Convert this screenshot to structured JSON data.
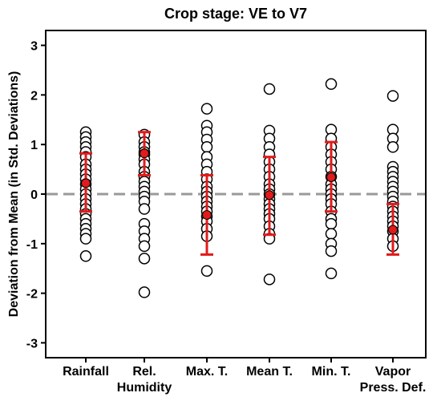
{
  "chart_data": {
    "type": "scatter",
    "title": "Crop stage: VE to V7",
    "ylabel": "Deviation from Mean (in Std. Deviations)",
    "xlabel": "",
    "ylim": [
      -3.3,
      3.3
    ],
    "yticks": [
      -3,
      -2,
      -1,
      0,
      1,
      2,
      3
    ],
    "reference_line": {
      "y": 0,
      "style": "dashed",
      "color": "#999999"
    },
    "categories": [
      {
        "line1": "Rainfall",
        "line2": ""
      },
      {
        "line1": "Rel.",
        "line2": "Humidity"
      },
      {
        "line1": "Max. T.",
        "line2": ""
      },
      {
        "line1": "Mean T.",
        "line2": ""
      },
      {
        "line1": "Min. T.",
        "line2": ""
      },
      {
        "line1": "Vapor",
        "line2": "Press. Def."
      }
    ],
    "points": [
      [
        1.25,
        1.15,
        1.05,
        0.95,
        0.85,
        0.75,
        0.6,
        0.5,
        0.4,
        0.3,
        0.2,
        0.1,
        0.0,
        -0.1,
        -0.2,
        -0.3,
        -0.4,
        -0.5,
        -0.6,
        -0.7,
        -0.8,
        -0.9,
        -1.25
      ],
      [
        1.2,
        1.05,
        0.95,
        0.85,
        0.8,
        0.7,
        0.6,
        0.45,
        0.35,
        0.25,
        0.15,
        0.05,
        -0.05,
        -0.15,
        -0.3,
        -0.6,
        -0.75,
        -0.9,
        -1.05,
        -1.3,
        -1.98
      ],
      [
        1.72,
        1.38,
        1.25,
        1.1,
        0.95,
        0.75,
        0.6,
        0.45,
        0.3,
        0.15,
        0.05,
        -0.05,
        -0.15,
        -0.25,
        -0.35,
        -0.45,
        -0.55,
        -0.7,
        -0.85,
        -1.55
      ],
      [
        2.12,
        1.28,
        1.12,
        0.95,
        0.8,
        0.65,
        0.5,
        0.35,
        0.2,
        0.1,
        0.0,
        -0.1,
        -0.2,
        -0.3,
        -0.4,
        -0.5,
        -0.65,
        -0.8,
        -0.9,
        -1.72
      ],
      [
        2.22,
        1.3,
        1.12,
        0.95,
        0.8,
        0.65,
        0.5,
        0.35,
        0.2,
        0.1,
        0.0,
        -0.1,
        -0.2,
        -0.35,
        -0.5,
        -0.6,
        -0.8,
        -1.0,
        -1.15,
        -1.6
      ],
      [
        1.98,
        1.3,
        1.12,
        0.95,
        0.55,
        0.45,
        0.35,
        0.25,
        0.15,
        0.05,
        -0.05,
        -0.15,
        -0.25,
        -0.35,
        -0.45,
        -0.55,
        -0.65,
        -0.75,
        -0.9,
        -1.05
      ]
    ],
    "mean": [
      0.22,
      0.82,
      -0.42,
      -0.02,
      0.34,
      -0.72
    ],
    "error_low": [
      -0.35,
      0.38,
      -1.22,
      -0.82,
      -0.35,
      -1.22
    ],
    "error_high": [
      0.82,
      1.25,
      0.38,
      0.75,
      1.05,
      -0.2
    ],
    "colors": {
      "mean": "#e11b1b",
      "error_bar": "#e11b1b",
      "point_edge": "#000000",
      "point_fill": "#ffffff",
      "ref_line": "#999999"
    },
    "grid": false
  }
}
